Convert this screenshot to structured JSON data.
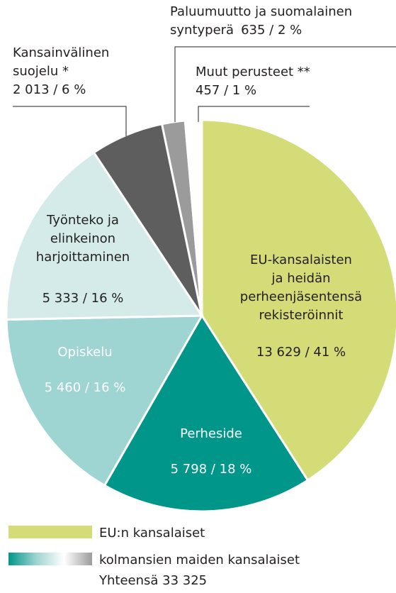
{
  "chart_data": {
    "type": "pie",
    "categories": [
      [
        "EU-kansalaisten",
        "ja heidän",
        "perheenjäsentensä",
        "rekisteröinnit"
      ],
      [
        "Perheside"
      ],
      [
        "Opiskelu"
      ],
      [
        "Työnteko ja",
        "elinkeinon",
        "harjoittaminen"
      ],
      [
        "Kansainvälinen",
        "suojelu *"
      ],
      [
        "Paluumuutto ja suomalainen",
        "syntyperä"
      ],
      [
        "Muut perusteet **"
      ]
    ],
    "values": [
      13629,
      5798,
      5460,
      5333,
      2013,
      635,
      457
    ],
    "value_labels": [
      "13 629 / 41 %",
      "5 798 / 18 %",
      "5 460 / 16 %",
      "5 333 / 16 %",
      "2 013 / 6 %",
      "635 / 2 %",
      "457 / 1 %"
    ],
    "colors": [
      "#d3dc76",
      "#00968a",
      "#9ed4d1",
      "#d5ebe9",
      "#5e5e5e",
      "#9b9b9b",
      "#ffffff"
    ],
    "legend": [
      {
        "name": "EU:n kansalaiset",
        "color": "#d3dc76"
      },
      {
        "name": "kolmansien maiden kansalaiset",
        "gradient": [
          "#00968a",
          "#9ed4d1",
          "#ffffff",
          "#9b9b9b"
        ]
      }
    ],
    "total": "Yhteensä  33 325"
  }
}
